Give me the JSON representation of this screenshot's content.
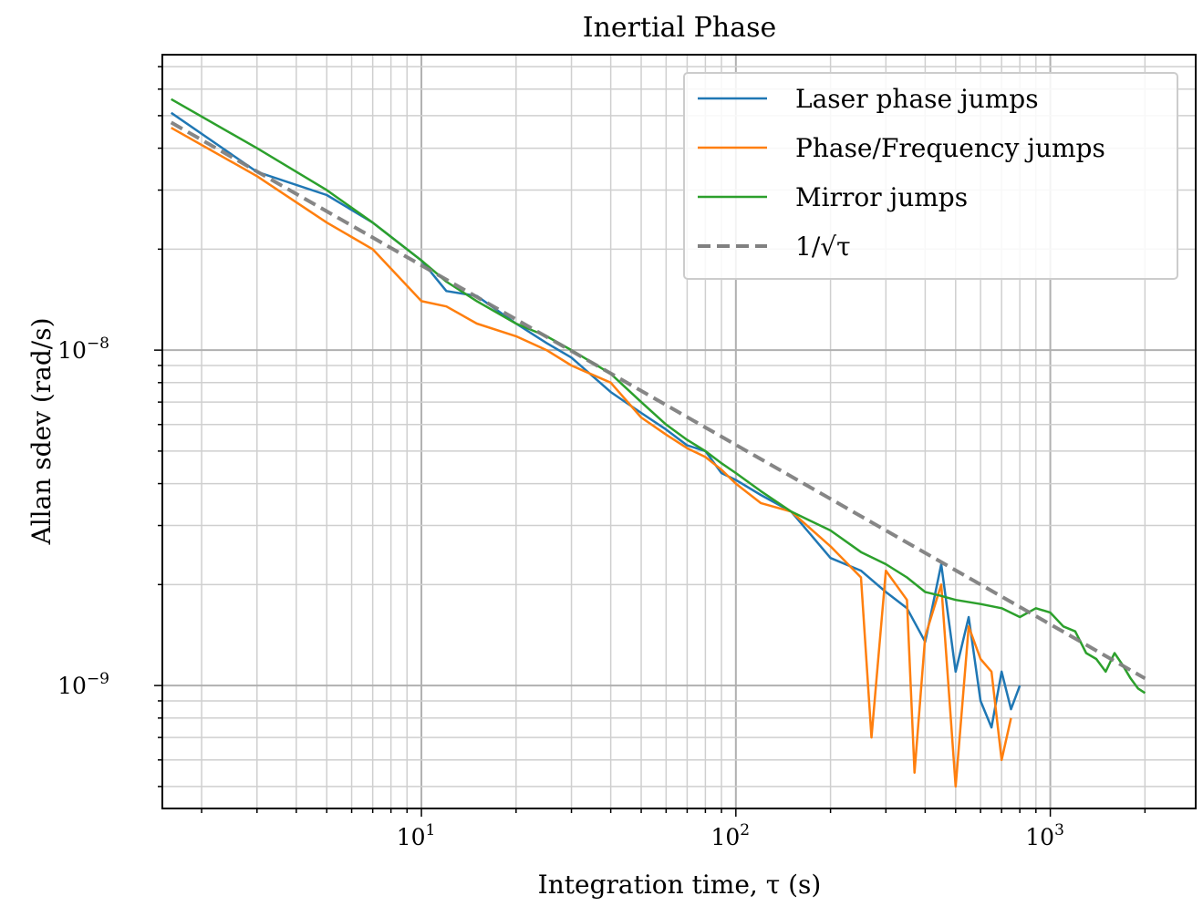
{
  "chart_data": {
    "type": "line",
    "title": "Inertial Phase",
    "xlabel": "Integration time, τ (s)",
    "ylabel": "Allan sdev (rad/s)",
    "xscale": "log",
    "yscale": "log",
    "xlim": [
      1.5,
      2900
    ],
    "ylim": [
      4.3e-10,
      7.6e-08
    ],
    "grid": true,
    "legend_position": "top-right",
    "x_ticks": [
      {
        "value": 10,
        "label": "10",
        "exp": "1"
      },
      {
        "value": 100,
        "label": "10",
        "exp": "2"
      },
      {
        "value": 1000,
        "label": "10",
        "exp": "3"
      }
    ],
    "y_ticks": [
      {
        "value": 1e-08,
        "label": "10",
        "exp": "−8"
      },
      {
        "value": 1e-09,
        "label": "10",
        "exp": "−9"
      }
    ],
    "series": [
      {
        "name": "Laser phase jumps",
        "color": "#1f77b4",
        "style": "solid",
        "points": [
          [
            1.6,
            5.1e-08
          ],
          [
            3,
            3.4e-08
          ],
          [
            5,
            2.9e-08
          ],
          [
            7,
            2.4e-08
          ],
          [
            10,
            1.85e-08
          ],
          [
            12,
            1.5e-08
          ],
          [
            15,
            1.45e-08
          ],
          [
            20,
            1.2e-08
          ],
          [
            25,
            1.05e-08
          ],
          [
            30,
            9.5e-09
          ],
          [
            40,
            7.5e-09
          ],
          [
            50,
            6.5e-09
          ],
          [
            60,
            5.8e-09
          ],
          [
            70,
            5.2e-09
          ],
          [
            80,
            5e-09
          ],
          [
            90,
            4.3e-09
          ],
          [
            100,
            4.1e-09
          ],
          [
            120,
            3.7e-09
          ],
          [
            150,
            3.3e-09
          ],
          [
            200,
            2.4e-09
          ],
          [
            250,
            2.2e-09
          ],
          [
            300,
            1.9e-09
          ],
          [
            350,
            1.7e-09
          ],
          [
            400,
            1.35e-09
          ],
          [
            450,
            2.3e-09
          ],
          [
            500,
            1.1e-09
          ],
          [
            550,
            1.6e-09
          ],
          [
            600,
            9e-10
          ],
          [
            650,
            7.5e-10
          ],
          [
            700,
            1.1e-09
          ],
          [
            750,
            8.5e-10
          ],
          [
            800,
            1e-09
          ]
        ]
      },
      {
        "name": "Phase/Frequency jumps",
        "color": "#ff7f0e",
        "style": "solid",
        "points": [
          [
            1.6,
            4.6e-08
          ],
          [
            3,
            3.3e-08
          ],
          [
            5,
            2.4e-08
          ],
          [
            7,
            2e-08
          ],
          [
            10,
            1.4e-08
          ],
          [
            12,
            1.35e-08
          ],
          [
            15,
            1.2e-08
          ],
          [
            20,
            1.1e-08
          ],
          [
            25,
            1e-08
          ],
          [
            30,
            9e-09
          ],
          [
            40,
            8e-09
          ],
          [
            50,
            6.3e-09
          ],
          [
            60,
            5.6e-09
          ],
          [
            70,
            5.1e-09
          ],
          [
            80,
            4.8e-09
          ],
          [
            90,
            4.4e-09
          ],
          [
            100,
            4e-09
          ],
          [
            120,
            3.5e-09
          ],
          [
            150,
            3.3e-09
          ],
          [
            200,
            2.6e-09
          ],
          [
            250,
            2.1e-09
          ],
          [
            270,
            7e-10
          ],
          [
            300,
            2.2e-09
          ],
          [
            350,
            1.8e-09
          ],
          [
            370,
            5.5e-10
          ],
          [
            400,
            1.4e-09
          ],
          [
            450,
            2e-09
          ],
          [
            500,
            5e-10
          ],
          [
            550,
            1.5e-09
          ],
          [
            600,
            1.2e-09
          ],
          [
            650,
            1.1e-09
          ],
          [
            700,
            6e-10
          ],
          [
            750,
            8e-10
          ]
        ]
      },
      {
        "name": "Mirror jumps",
        "color": "#2ca02c",
        "style": "solid",
        "points": [
          [
            1.6,
            5.6e-08
          ],
          [
            3,
            4e-08
          ],
          [
            5,
            3e-08
          ],
          [
            7,
            2.4e-08
          ],
          [
            10,
            1.85e-08
          ],
          [
            12,
            1.6e-08
          ],
          [
            15,
            1.4e-08
          ],
          [
            20,
            1.2e-08
          ],
          [
            25,
            1.1e-08
          ],
          [
            30,
            1e-08
          ],
          [
            40,
            8.5e-09
          ],
          [
            50,
            7e-09
          ],
          [
            60,
            6e-09
          ],
          [
            70,
            5.4e-09
          ],
          [
            80,
            5e-09
          ],
          [
            90,
            4.6e-09
          ],
          [
            100,
            4.3e-09
          ],
          [
            120,
            3.8e-09
          ],
          [
            150,
            3.3e-09
          ],
          [
            200,
            2.9e-09
          ],
          [
            250,
            2.5e-09
          ],
          [
            300,
            2.3e-09
          ],
          [
            350,
            2.1e-09
          ],
          [
            400,
            1.9e-09
          ],
          [
            450,
            1.85e-09
          ],
          [
            500,
            1.8e-09
          ],
          [
            600,
            1.75e-09
          ],
          [
            700,
            1.7e-09
          ],
          [
            800,
            1.6e-09
          ],
          [
            900,
            1.7e-09
          ],
          [
            1000,
            1.65e-09
          ],
          [
            1100,
            1.5e-09
          ],
          [
            1200,
            1.45e-09
          ],
          [
            1300,
            1.25e-09
          ],
          [
            1400,
            1.2e-09
          ],
          [
            1500,
            1.1e-09
          ],
          [
            1600,
            1.25e-09
          ],
          [
            1700,
            1.15e-09
          ],
          [
            1800,
            1.05e-09
          ],
          [
            1900,
            9.8e-10
          ],
          [
            2000,
            9.5e-10
          ]
        ]
      },
      {
        "name": "1/√τ",
        "color": "#808080",
        "style": "dashed",
        "points": [
          [
            1.6,
            4.77e-08
          ],
          [
            2000,
            1.05e-09
          ]
        ]
      }
    ]
  }
}
